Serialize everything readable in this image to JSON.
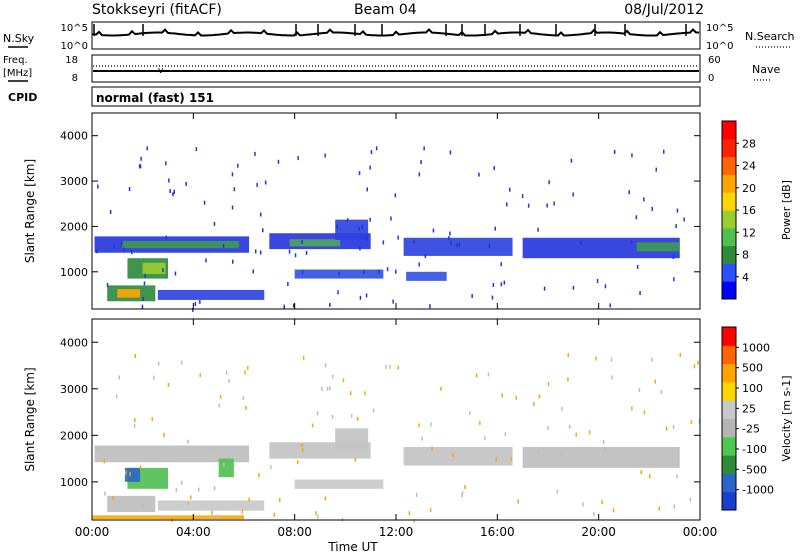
{
  "header": {
    "station": "Stokkseyri (fitACF)",
    "beam": "Beam 04",
    "date": "08/Jul/2012"
  },
  "noise_panel": {
    "left_label": "N.Sky",
    "right_label": "N.Search",
    "left_ticks": [
      "10^5",
      "10^0"
    ],
    "right_ticks": [
      "10^5",
      "10^0"
    ]
  },
  "freq_panel": {
    "left_label_line1": "Freq.",
    "left_label_line2": "[MHz]",
    "left_ticks": [
      "18",
      "8"
    ],
    "right_ticks": [
      "60",
      "0"
    ],
    "right_label": "Nave"
  },
  "cpid": {
    "label": "CPID",
    "mode": "normal (fast) 151"
  },
  "chart_data": [
    {
      "type": "heatmap",
      "name": "power",
      "ylabel": "Slant Range [km]",
      "yticks": [
        "4000",
        "3000",
        "2000",
        "1000"
      ],
      "ylim": [
        180,
        4500
      ],
      "xticks": [
        "00:00",
        "04:00",
        "08:00",
        "12:00",
        "16:00",
        "20:00",
        "00:00"
      ],
      "xlim": [
        0,
        24
      ],
      "colorbar_label": "Power [dB]",
      "colorbar_ticks": [
        "28",
        "24",
        "20",
        "16",
        "12",
        "8",
        "4"
      ],
      "colorbar_colors": [
        "#0000ff",
        "#2a50ff",
        "#2e8b3a",
        "#4fbf4f",
        "#9acd32",
        "#ffd700",
        "#ffa500",
        "#ff6600",
        "#ff2200",
        "#ff0000"
      ],
      "bands": [
        {
          "t0": 0.1,
          "t1": 6.2,
          "r0": 1420,
          "r1": 1780,
          "color": "#2233dd"
        },
        {
          "t0": 1.2,
          "t1": 5.8,
          "r0": 1520,
          "r1": 1680,
          "color": "#3f9a50"
        },
        {
          "t0": 7.0,
          "t1": 11.0,
          "r0": 1500,
          "r1": 1850,
          "color": "#2233dd"
        },
        {
          "t0": 7.8,
          "t1": 9.8,
          "r0": 1560,
          "r1": 1720,
          "color": "#4fa65a"
        },
        {
          "t0": 9.6,
          "t1": 10.9,
          "r0": 1700,
          "r1": 2150,
          "color": "#2a40e0"
        },
        {
          "t0": 12.3,
          "t1": 16.6,
          "r0": 1350,
          "r1": 1750,
          "color": "#2a40e0"
        },
        {
          "t0": 17.0,
          "t1": 23.2,
          "r0": 1300,
          "r1": 1750,
          "color": "#2233dd"
        },
        {
          "t0": 21.5,
          "t1": 23.2,
          "r0": 1450,
          "r1": 1650,
          "color": "#3f9a50"
        },
        {
          "t0": 8.0,
          "t1": 11.5,
          "r0": 850,
          "r1": 1050,
          "color": "#3050e0"
        },
        {
          "t0": 12.4,
          "t1": 14.0,
          "r0": 800,
          "r1": 1000,
          "color": "#3050e0"
        },
        {
          "t0": 1.4,
          "t1": 3.0,
          "r0": 850,
          "r1": 1300,
          "color": "#2b8a3b"
        },
        {
          "t0": 2.0,
          "t1": 2.9,
          "r0": 950,
          "r1": 1200,
          "color": "#9acd32"
        },
        {
          "t0": 0.6,
          "t1": 2.5,
          "r0": 350,
          "r1": 700,
          "color": "#2b8a3b"
        },
        {
          "t0": 1.0,
          "t1": 1.9,
          "r0": 430,
          "r1": 620,
          "color": "#ffa500"
        },
        {
          "t0": 2.6,
          "t1": 6.8,
          "r0": 380,
          "r1": 600,
          "color": "#2a40e0"
        }
      ]
    },
    {
      "type": "heatmap",
      "name": "velocity",
      "ylabel": "Slant Range [km]",
      "yticks": [
        "4000",
        "3000",
        "2000",
        "1000"
      ],
      "ylim": [
        180,
        4500
      ],
      "xticks": [
        "00:00",
        "04:00",
        "08:00",
        "12:00",
        "16:00",
        "20:00",
        "00:00"
      ],
      "xlabel": "Time UT",
      "xlim": [
        0,
        24
      ],
      "colorbar_label": "Velocity [m s-1]",
      "colorbar_ticks": [
        "1000",
        "500",
        "100",
        "25",
        "-25",
        "-100",
        "-500",
        "-1000"
      ],
      "colorbar_colors": [
        "#1a3fd0",
        "#2a66c8",
        "#2e8b3a",
        "#4fc84f",
        "#b5b5b5",
        "#c8c8c8",
        "#ffd700",
        "#ffa500",
        "#ff6600",
        "#ff0000"
      ],
      "bands": [
        {
          "t0": 0.1,
          "t1": 6.2,
          "r0": 1420,
          "r1": 1780,
          "color": "#bdbdbd"
        },
        {
          "t0": 7.0,
          "t1": 11.0,
          "r0": 1500,
          "r1": 1850,
          "color": "#c2c2c2"
        },
        {
          "t0": 9.6,
          "t1": 10.9,
          "r0": 1700,
          "r1": 2150,
          "color": "#c2c2c2"
        },
        {
          "t0": 12.3,
          "t1": 16.6,
          "r0": 1350,
          "r1": 1750,
          "color": "#c2c2c2"
        },
        {
          "t0": 17.0,
          "t1": 23.2,
          "r0": 1300,
          "r1": 1750,
          "color": "#bdbdbd"
        },
        {
          "t0": 8.0,
          "t1": 11.5,
          "r0": 850,
          "r1": 1050,
          "color": "#c8c8c8"
        },
        {
          "t0": 1.4,
          "t1": 3.0,
          "r0": 850,
          "r1": 1300,
          "color": "#4fbf4f"
        },
        {
          "t0": 1.3,
          "t1": 1.9,
          "r0": 1000,
          "r1": 1300,
          "color": "#2a66c8"
        },
        {
          "t0": 0.6,
          "t1": 2.5,
          "r0": 350,
          "r1": 700,
          "color": "#bdbdbd"
        },
        {
          "t0": 2.6,
          "t1": 6.8,
          "r0": 380,
          "r1": 600,
          "color": "#c8c8c8"
        },
        {
          "t0": 5.0,
          "t1": 5.6,
          "r0": 1100,
          "r1": 1500,
          "color": "#4fbf4f"
        },
        {
          "t0": 0.0,
          "t1": 6.0,
          "r0": 200,
          "r1": 280,
          "color": "#ffa500"
        }
      ]
    }
  ]
}
